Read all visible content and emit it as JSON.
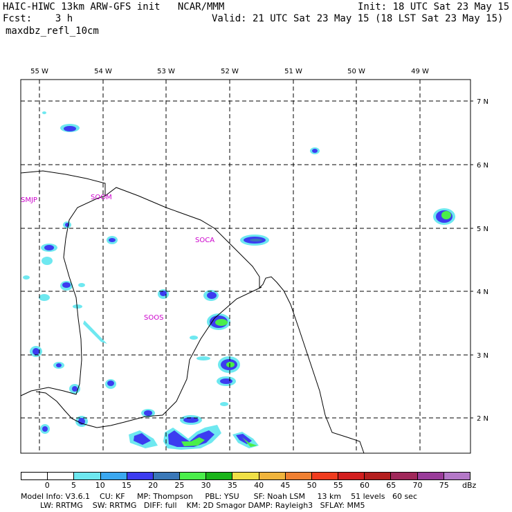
{
  "header": {
    "title": "HAIC-HIWC 13km ARW-GFS init   NCAR/MMM",
    "init": "Init: 18 UTC Sat 23 May 15",
    "fcst": "Fcst:    3 h",
    "valid": "Valid: 21 UTC Sat 23 May 15 (18 LST Sat 23 May 15)",
    "field": "maxdbz_refl_10cm"
  },
  "map": {
    "lon_labels": [
      "55 W",
      "54 W",
      "53 W",
      "52 W",
      "51 W",
      "50 W",
      "49 W"
    ],
    "lat_labels": [
      "7 N",
      "6 N",
      "5 N",
      "4 N",
      "3 N",
      "2 N"
    ],
    "place_labels": [
      "SMJP",
      "SOOM",
      "SOCA",
      "SOOS"
    ],
    "place_label_color": "#cc00cc"
  },
  "colorbar": {
    "ticks": [
      "0",
      "5",
      "10",
      "15",
      "20",
      "25",
      "30",
      "35",
      "40",
      "45",
      "50",
      "55",
      "60",
      "65",
      "70",
      "75"
    ],
    "unit": "dBz",
    "colors": [
      "#ffffff",
      "#ffffff",
      "#6ee8f0",
      "#3ba8f0",
      "#3c3cf0",
      "#3a78b8",
      "#4aee4a",
      "#1ab41a",
      "#f0e046",
      "#f0b43c",
      "#f08032",
      "#f03c1e",
      "#d21e1e",
      "#b41e1e",
      "#a0285a",
      "#9a3c9a",
      "#b478c8"
    ]
  },
  "footer": {
    "line1": "Model Info: V3.6.1    CU: KF     MP: Thompson     PBL: YSU      SF: Noah LSM     13 km    51 levels   60 sec",
    "line2": "        LW: RRTMG    SW: RRTMG   DIFF: full    KM: 2D Smagor DAMP: Rayleigh3   SFLAY: MM5"
  }
}
